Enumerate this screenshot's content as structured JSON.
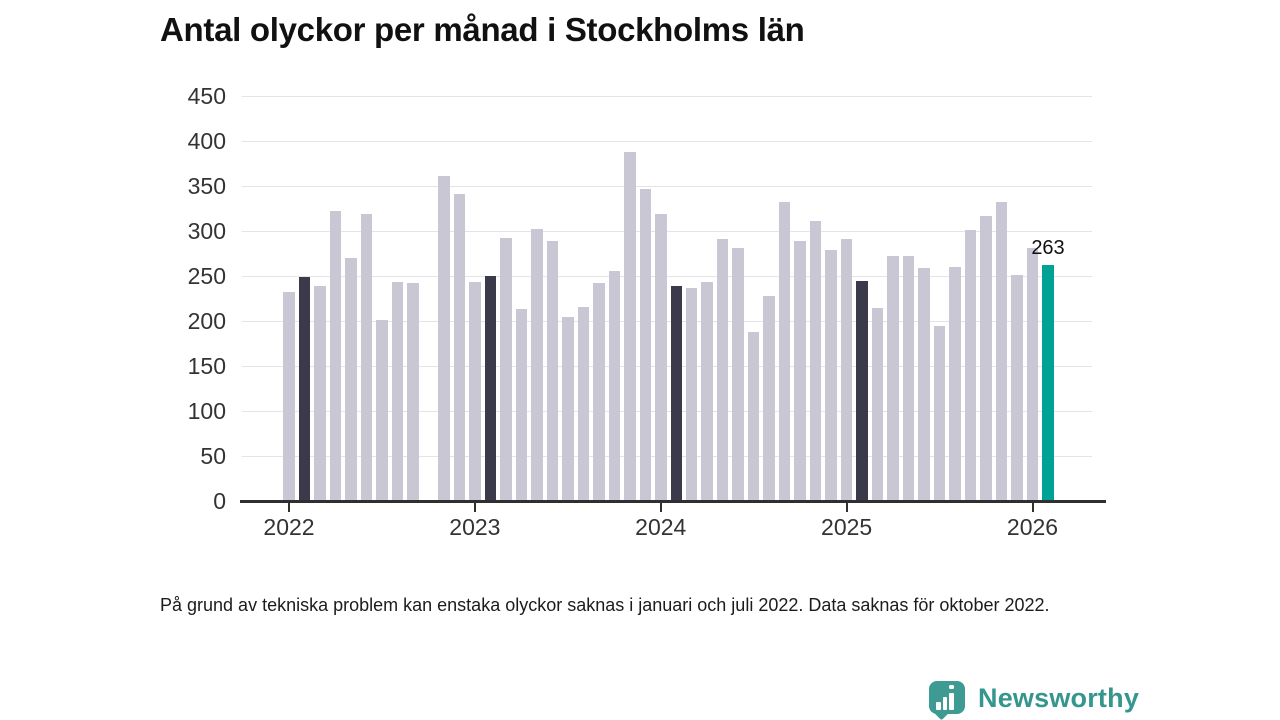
{
  "title": "Antal olyckor per månad i Stockholms län",
  "footnote": "På grund av tekniska problem kan enstaka olyckor saknas i januari och juli 2022. Data saknas för oktober 2022.",
  "annotation": {
    "label": "263"
  },
  "branding": {
    "name": "Newsworthy",
    "icon": "newsworthy-speech-bubble-chart-icon",
    "color": "#3d9b93"
  },
  "colors": {
    "bar": "#c9c7d4",
    "highlight_dark": "#3a3a4a",
    "highlight_teal": "#00a296",
    "gridline": "#e4e3e8",
    "axis": "#2f2f2f",
    "text": "#1a1a1a"
  },
  "chart_data": {
    "type": "bar",
    "title": "Antal olyckor per månad i Stockholms län",
    "xlabel": "",
    "ylabel": "",
    "ylim": [
      0,
      450
    ],
    "yticks": [
      0,
      50,
      100,
      150,
      200,
      250,
      300,
      350,
      400,
      450
    ],
    "xticks": [
      "2022",
      "2023",
      "2024",
      "2025",
      "2026"
    ],
    "grid": true,
    "legend": false,
    "note": "Dark bars highlight February of each year; teal bar is the latest month (labeled 263). No bar for 2022-10 (data missing).",
    "series": [
      {
        "name": "Antal olyckor",
        "points": [
          {
            "month": "2022-01",
            "value": 233
          },
          {
            "month": "2022-02",
            "value": 249,
            "highlight": "dark"
          },
          {
            "month": "2022-03",
            "value": 239
          },
          {
            "month": "2022-04",
            "value": 323
          },
          {
            "month": "2022-05",
            "value": 270
          },
          {
            "month": "2022-06",
            "value": 319
          },
          {
            "month": "2022-07",
            "value": 201
          },
          {
            "month": "2022-08",
            "value": 244
          },
          {
            "month": "2022-09",
            "value": 243
          },
          {
            "month": "2022-10",
            "value": null
          },
          {
            "month": "2022-11",
            "value": 362
          },
          {
            "month": "2022-12",
            "value": 341
          },
          {
            "month": "2023-01",
            "value": 244
          },
          {
            "month": "2023-02",
            "value": 250,
            "highlight": "dark"
          },
          {
            "month": "2023-03",
            "value": 293
          },
          {
            "month": "2023-04",
            "value": 214
          },
          {
            "month": "2023-05",
            "value": 303
          },
          {
            "month": "2023-06",
            "value": 289
          },
          {
            "month": "2023-07",
            "value": 205
          },
          {
            "month": "2023-08",
            "value": 216
          },
          {
            "month": "2023-09",
            "value": 243
          },
          {
            "month": "2023-10",
            "value": 256
          },
          {
            "month": "2023-11",
            "value": 388
          },
          {
            "month": "2023-12",
            "value": 347
          },
          {
            "month": "2024-01",
            "value": 319
          },
          {
            "month": "2024-02",
            "value": 239,
            "highlight": "dark"
          },
          {
            "month": "2024-03",
            "value": 237
          },
          {
            "month": "2024-04",
            "value": 244
          },
          {
            "month": "2024-05",
            "value": 292
          },
          {
            "month": "2024-06",
            "value": 281
          },
          {
            "month": "2024-07",
            "value": 188
          },
          {
            "month": "2024-08",
            "value": 228
          },
          {
            "month": "2024-09",
            "value": 333
          },
          {
            "month": "2024-10",
            "value": 289
          },
          {
            "month": "2024-11",
            "value": 312
          },
          {
            "month": "2024-12",
            "value": 279
          },
          {
            "month": "2025-01",
            "value": 292
          },
          {
            "month": "2025-02",
            "value": 245,
            "highlight": "dark"
          },
          {
            "month": "2025-03",
            "value": 215
          },
          {
            "month": "2025-04",
            "value": 273
          },
          {
            "month": "2025-05",
            "value": 273
          },
          {
            "month": "2025-06",
            "value": 259
          },
          {
            "month": "2025-07",
            "value": 195
          },
          {
            "month": "2025-08",
            "value": 260
          },
          {
            "month": "2025-09",
            "value": 301
          },
          {
            "month": "2025-10",
            "value": 317
          },
          {
            "month": "2025-11",
            "value": 333
          },
          {
            "month": "2025-12",
            "value": 251
          },
          {
            "month": "2026-01",
            "value": 282
          },
          {
            "month": "2026-02",
            "value": 263,
            "highlight": "teal",
            "label": "263"
          }
        ]
      }
    ]
  }
}
